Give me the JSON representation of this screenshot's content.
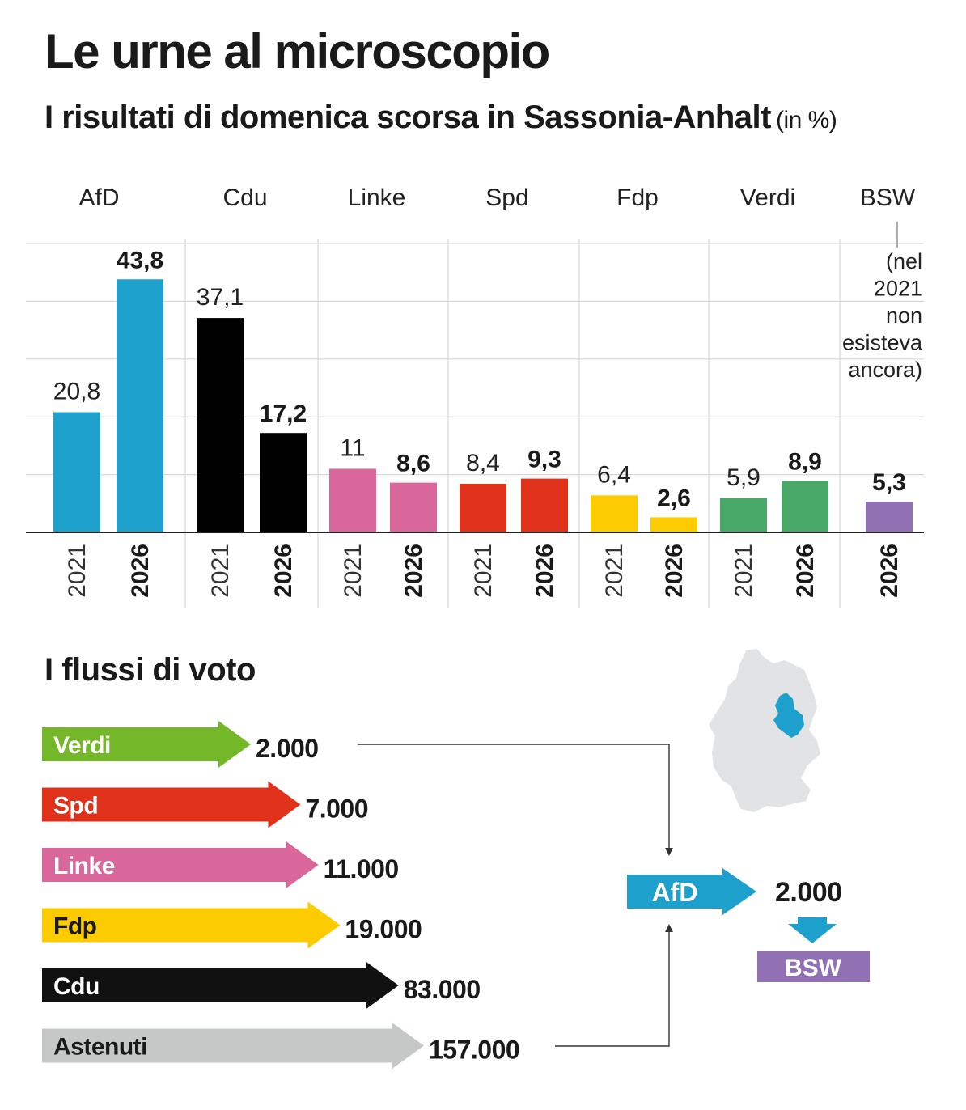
{
  "header": {
    "title": "Le urne al microscopio",
    "subtitle": "I risultati di domenica scorsa in Sassonia-Anhalt",
    "unit": "(in %)"
  },
  "chart_data": {
    "type": "bar",
    "categories": [
      "AfD",
      "Cdu",
      "Linke",
      "Spd",
      "Fdp",
      "Verdi",
      "BSW"
    ],
    "series": [
      {
        "name": "2021",
        "values": [
          20.8,
          37.1,
          11,
          8.4,
          6.4,
          5.9,
          null
        ]
      },
      {
        "name": "2026",
        "values": [
          43.8,
          17.2,
          8.6,
          9.3,
          2.6,
          8.9,
          5.3
        ]
      }
    ],
    "value_labels": {
      "2021": [
        "20,8",
        "37,1",
        "11",
        "8,4",
        "6,4",
        "5,9",
        ""
      ],
      "2026": [
        "43,8",
        "17,2",
        "8,6",
        "9,3",
        "2,6",
        "8,9",
        "5,3"
      ]
    },
    "colors": {
      "AfD": "#1ea0cc",
      "Cdu": "#000000",
      "Linke": "#d9679b",
      "Spd": "#e0321b",
      "Fdp": "#fccb00",
      "Verdi": "#47a868",
      "BSW": "#9170b4"
    },
    "ylim": [
      0,
      50
    ],
    "grid": true,
    "bsw_note": [
      "(nel",
      "2021",
      "non",
      "esisteva",
      "ancora)"
    ]
  },
  "flows": {
    "title": "I flussi di voto",
    "inflows": [
      {
        "label": "Verdi",
        "value": "2.000",
        "count": 2000,
        "color": "#74b729",
        "text_color": "#ffffff"
      },
      {
        "label": "Spd",
        "value": "7.000",
        "count": 7000,
        "color": "#e0321b",
        "text_color": "#ffffff"
      },
      {
        "label": "Linke",
        "value": "11.000",
        "count": 11000,
        "color": "#d9679b",
        "text_color": "#ffffff"
      },
      {
        "label": "Fdp",
        "value": "19.000",
        "count": 19000,
        "color": "#fccb00",
        "text_color": "#1a1a1a"
      },
      {
        "label": "Cdu",
        "value": "83.000",
        "count": 83000,
        "color": "#111111",
        "text_color": "#ffffff"
      },
      {
        "label": "Astenuti",
        "value": "157.000",
        "count": 157000,
        "color": "#c6c8c8",
        "text_color": "#1a1a1a"
      }
    ],
    "target": {
      "label": "AfD",
      "color": "#1ea0cc"
    },
    "outflow": {
      "value": "2.000",
      "label": "BSW",
      "color": "#9170b4"
    }
  },
  "map": {
    "country_color": "#e2e3e4",
    "highlight_color": "#1ea0cc"
  }
}
